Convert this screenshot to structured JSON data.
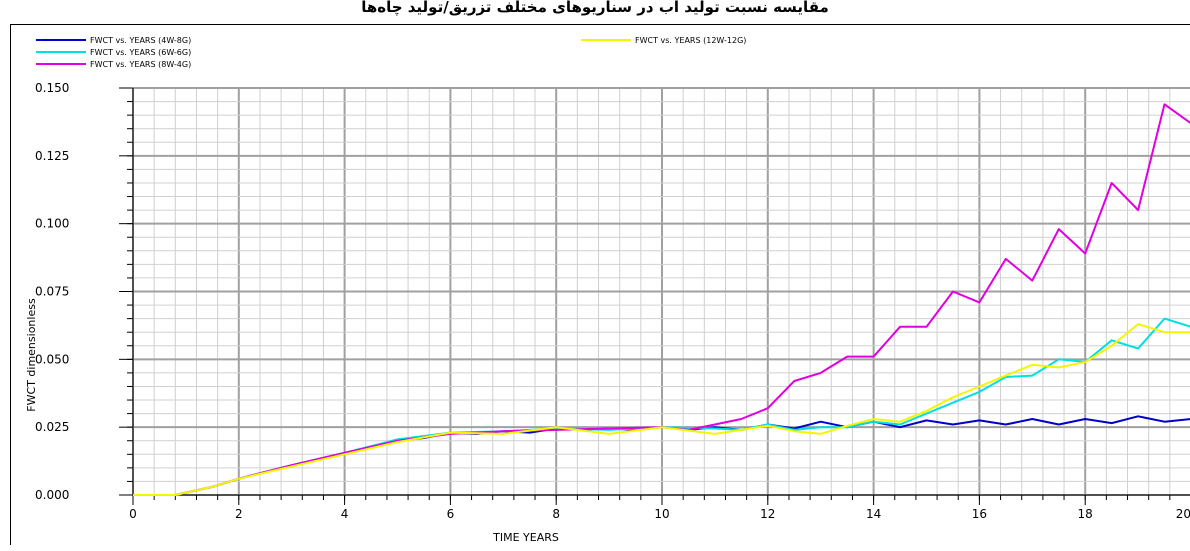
{
  "page_heading": "مقایسه نسبت تولید آب در سناریوهای مختلف تزریق/تولید چاه‌ها",
  "chart_data": {
    "type": "line",
    "xlabel": "TIME   YEARS",
    "ylabel": "FWCT  dimensionless",
    "xlim": [
      0,
      20
    ],
    "ylim": [
      0,
      0.15
    ],
    "xticks": [
      "0",
      "2",
      "4",
      "6",
      "8",
      "10",
      "12",
      "14",
      "16",
      "18",
      "20"
    ],
    "yticks": [
      "0.000",
      "0.025",
      "0.050",
      "0.075",
      "0.100",
      "0.125",
      "0.150"
    ],
    "grid": true,
    "legend_position": "top-left",
    "series": [
      {
        "name": "FWCT  vs.  YEARS (4W-8G)",
        "color": "#0000cc",
        "x": [
          0,
          0.8,
          1.5,
          2,
          3,
          4,
          5,
          5.5,
          6,
          6.5,
          7,
          7.5,
          8,
          8.5,
          9,
          9.5,
          10,
          10.5,
          11,
          11.5,
          12,
          12.5,
          13,
          13.5,
          14,
          14.5,
          15,
          15.5,
          16,
          16.5,
          17,
          17.5,
          18,
          18.5,
          19,
          19.5,
          20
        ],
        "y": [
          0,
          0,
          0.003,
          0.006,
          0.011,
          0.0155,
          0.02,
          0.021,
          0.023,
          0.0225,
          0.0235,
          0.023,
          0.0245,
          0.024,
          0.0245,
          0.024,
          0.025,
          0.024,
          0.025,
          0.024,
          0.026,
          0.0245,
          0.027,
          0.025,
          0.027,
          0.025,
          0.0275,
          0.026,
          0.0275,
          0.026,
          0.028,
          0.026,
          0.028,
          0.0265,
          0.029,
          0.027,
          0.028
        ]
      },
      {
        "name": "FWCT  vs.  YEARS (6W-6G)",
        "color": "#00e0e0",
        "x": [
          0,
          0.8,
          1.5,
          2,
          3,
          4,
          5,
          6,
          7,
          8,
          9,
          10,
          11,
          11.5,
          12,
          12.5,
          13,
          13.5,
          14,
          14.5,
          15,
          15.5,
          16,
          16.5,
          17,
          17.5,
          18,
          18.5,
          19,
          19.5,
          20
        ],
        "y": [
          0,
          0,
          0.003,
          0.006,
          0.011,
          0.0155,
          0.0205,
          0.023,
          0.0235,
          0.0245,
          0.024,
          0.025,
          0.0245,
          0.024,
          0.026,
          0.024,
          0.025,
          0.025,
          0.027,
          0.026,
          0.03,
          0.034,
          0.038,
          0.0435,
          0.044,
          0.05,
          0.049,
          0.057,
          0.054,
          0.065,
          0.062
        ]
      },
      {
        "name": "FWCT  vs.  YEARS (8W-4G)",
        "color": "#e000e0",
        "x": [
          0,
          0.8,
          1.5,
          2,
          3,
          4,
          5,
          6,
          7,
          8,
          9,
          10,
          10.5,
          11,
          11.5,
          12,
          12.5,
          13,
          13.5,
          14,
          14.5,
          15,
          15.5,
          16,
          16.5,
          17,
          17.5,
          18,
          18.5,
          19,
          19.5,
          20
        ],
        "y": [
          0,
          0,
          0.003,
          0.006,
          0.011,
          0.0155,
          0.02,
          0.0225,
          0.0235,
          0.024,
          0.0245,
          0.025,
          0.024,
          0.026,
          0.028,
          0.032,
          0.042,
          0.045,
          0.051,
          0.051,
          0.062,
          0.062,
          0.075,
          0.071,
          0.087,
          0.079,
          0.098,
          0.089,
          0.115,
          0.105,
          0.144,
          0.137
        ]
      },
      {
        "name": "FWCT  vs.  YEARS (12W-12G)",
        "color": "#f5f500",
        "x": [
          0,
          0.8,
          1.5,
          2,
          3,
          4,
          5,
          6,
          7,
          8,
          9,
          10,
          11,
          12,
          12.5,
          13,
          13.5,
          14,
          14.5,
          15,
          15.5,
          16,
          16.5,
          17,
          17.5,
          18,
          18.5,
          19,
          19.5,
          20
        ],
        "y": [
          0,
          0,
          0.003,
          0.006,
          0.0105,
          0.015,
          0.0195,
          0.023,
          0.0225,
          0.025,
          0.0225,
          0.025,
          0.0225,
          0.0255,
          0.0235,
          0.0225,
          0.0255,
          0.028,
          0.027,
          0.031,
          0.036,
          0.04,
          0.044,
          0.048,
          0.047,
          0.049,
          0.055,
          0.063,
          0.06,
          0.06
        ]
      }
    ]
  }
}
